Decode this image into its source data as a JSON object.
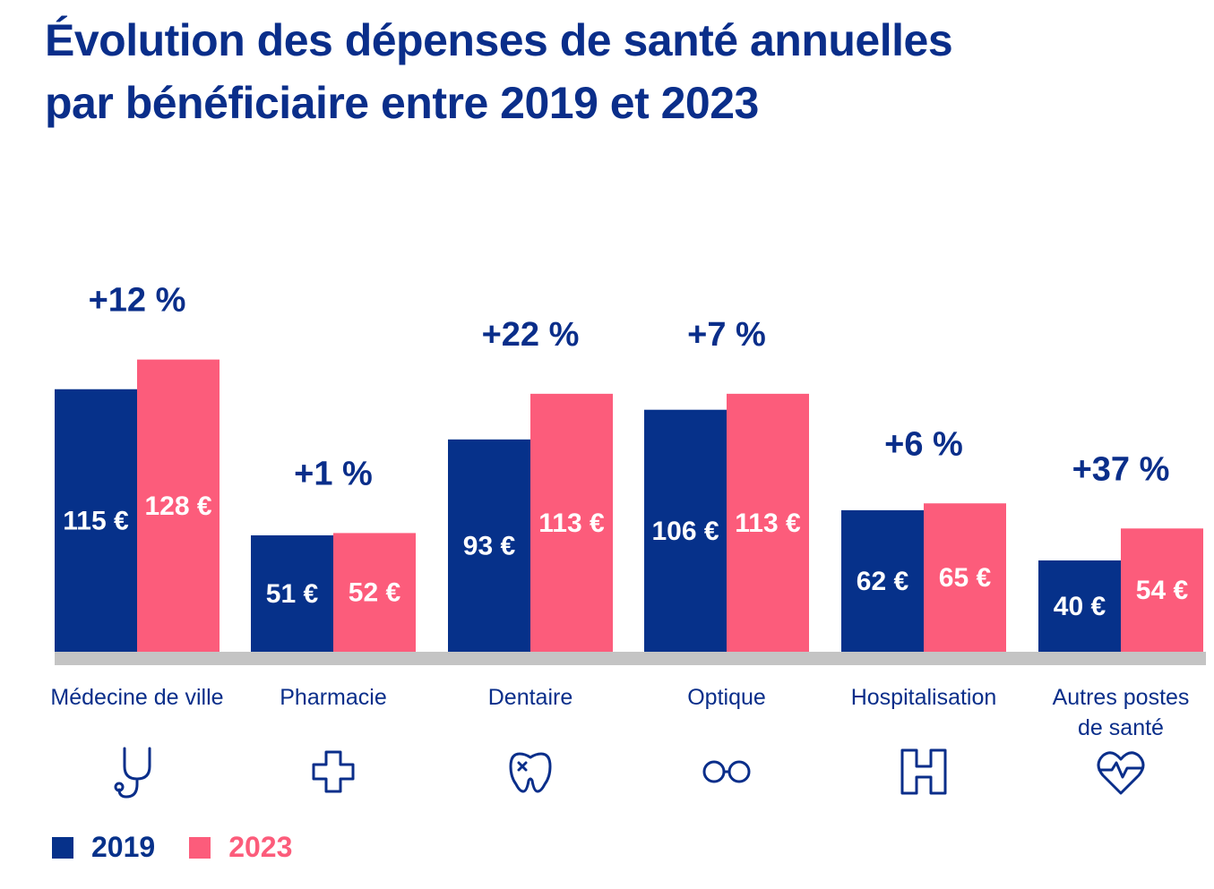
{
  "title_lines": [
    "Évolution des dépenses de santé annuelles",
    "par bénéficiaire entre 2019 et 2023"
  ],
  "colors": {
    "title": "#0a2e8a",
    "series_2019": "#06318a",
    "series_2023": "#fc5c7b",
    "baseline": "#c4c4c4"
  },
  "legend": [
    {
      "label": "2019",
      "color": "#06318a"
    },
    {
      "label": "2023",
      "color": "#fc5c7b"
    }
  ],
  "chart_data": {
    "type": "bar",
    "categories": [
      "Médecine de ville",
      "Pharmacie",
      "Dentaire",
      "Optique",
      "Hospitalisation",
      "Autres postes de santé"
    ],
    "category_lines": [
      [
        "Médecine de ville"
      ],
      [
        "Pharmacie"
      ],
      [
        "Dentaire"
      ],
      [
        "Optique"
      ],
      [
        "Hospitalisation"
      ],
      [
        "Autres postes",
        "de santé"
      ]
    ],
    "category_icons": [
      "stethoscope-icon",
      "cross-icon",
      "tooth-icon",
      "glasses-icon",
      "hospital-icon",
      "heart-pulse-icon"
    ],
    "series": [
      {
        "name": "2019",
        "values": [
          115,
          51,
          93,
          106,
          62,
          40
        ],
        "labels": [
          "115 €",
          "51 €",
          "93 €",
          "106 €",
          "62 €",
          "40 €"
        ]
      },
      {
        "name": "2023",
        "values": [
          128,
          52,
          113,
          113,
          65,
          54
        ],
        "labels": [
          "128 €",
          "52 €",
          "113 €",
          "113 €",
          "65 €",
          "54 €"
        ]
      }
    ],
    "changes": [
      "+12 %",
      "+1 %",
      "+22 %",
      "+7 %",
      "+6 %",
      "+37 %"
    ],
    "ylim": [
      0,
      128
    ]
  }
}
